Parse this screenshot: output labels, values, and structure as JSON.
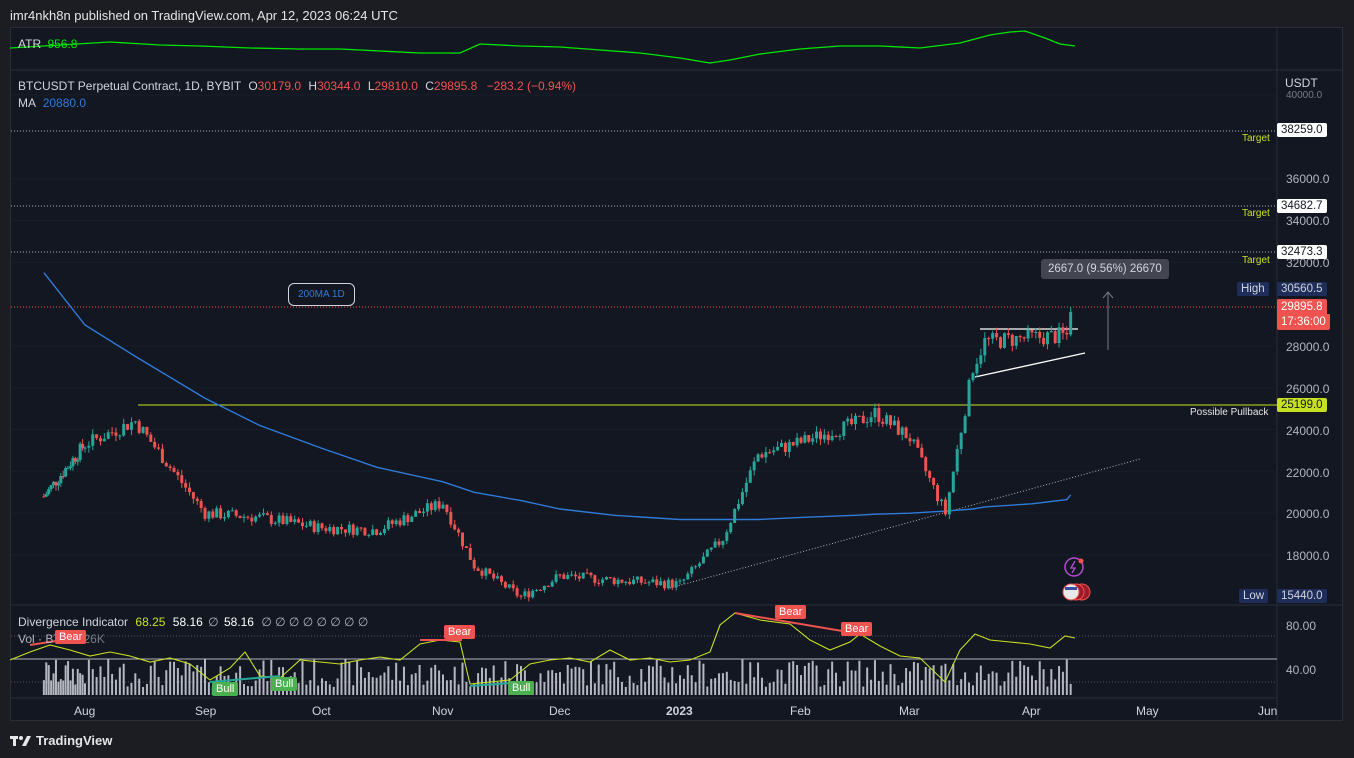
{
  "header": {
    "title": "imr4nkh8n published on TradingView.com, Apr 12, 2023 06:24 UTC"
  },
  "atr": {
    "label": "ATR",
    "value": "956.8"
  },
  "symbol": {
    "name": "BTCUSDT Perpetual Contract, 1D, BYBIT",
    "o_label": "O",
    "o": "30179.0",
    "h_label": "H",
    "h": "30344.0",
    "l_label": "L",
    "l": "29810.0",
    "c_label": "C",
    "c": "29895.8",
    "change": "−283.2 (−0.94%)"
  },
  "ma": {
    "label": "MA",
    "value": "20880.0"
  },
  "currency": "USDT",
  "price_axis": [
    "40000.0",
    "36000.0",
    "34000.0",
    "32000.0",
    "28000.0",
    "26000.0",
    "24000.0",
    "22000.0",
    "20000.0",
    "18000.0"
  ],
  "price_boxes": {
    "target1": "38259.0",
    "target2": "34682.7",
    "target3": "32473.3",
    "high_label": "High",
    "high": "30560.5",
    "last": "29895.8",
    "countdown": "17:36:00",
    "pullback": "25199.0",
    "low_label": "Low",
    "low": "15440.0"
  },
  "annotations": {
    "target": "Target",
    "possible_pullback": "Possible Pullback",
    "ma_callout": "200MA 1D",
    "measure": "2667.0 (9.56%) 26670"
  },
  "divergence": {
    "label": "Divergence Indicator",
    "v1": "68.25",
    "v2": "58.16",
    "v3": "58.16",
    "nulls": "∅ ∅ ∅ ∅ ∅ ∅ ∅ ∅",
    "axis": [
      "80.00",
      "40.00"
    ],
    "bear": "Bear",
    "bull": "Bull"
  },
  "volume": {
    "label": "Vol · BT",
    "value": "3.126K"
  },
  "time_axis": [
    "Aug",
    "Sep",
    "Oct",
    "Nov",
    "Dec",
    "2023",
    "Feb",
    "Mar",
    "Apr",
    "May",
    "Jun"
  ],
  "footer": {
    "brand": "TradingView"
  },
  "colors": {
    "bull": "#26a69a",
    "bear": "#ef5350",
    "ma": "#2962ff",
    "atr": "#00e600",
    "osc": "#c8e022",
    "pullback": "#c8e022"
  },
  "chart_data": {
    "type": "candlestick",
    "title": "BTCUSDT Perpetual Contract, 1D, BYBIT",
    "ylabel": "USDT",
    "ylim": [
      15440,
      40000
    ],
    "x": [
      "2022-07-15",
      "2022-08-01",
      "2022-08-14",
      "2022-09-01",
      "2022-09-15",
      "2022-10-01",
      "2022-10-15",
      "2022-11-01",
      "2022-11-09",
      "2022-11-21",
      "2022-12-01",
      "2022-12-15",
      "2023-01-01",
      "2023-01-12",
      "2023-01-21",
      "2023-02-01",
      "2023-02-15",
      "2023-02-20",
      "2023-03-01",
      "2023-03-10",
      "2023-03-17",
      "2023-03-20",
      "2023-04-01",
      "2023-04-10",
      "2023-04-11"
    ],
    "close": [
      20800,
      23300,
      24400,
      20000,
      19800,
      19300,
      19200,
      20500,
      17500,
      16000,
      17000,
      16800,
      16600,
      18800,
      22800,
      23400,
      24300,
      24800,
      23600,
      20000,
      27000,
      28200,
      28400,
      28500,
      29896
    ],
    "ma200": [
      31500,
      29000,
      27500,
      25500,
      24200,
      23100,
      22200,
      21500,
      21000,
      20600,
      20200,
      19900,
      19700,
      19700,
      19700,
      19800,
      19900,
      19950,
      20000,
      20100,
      20200,
      20300,
      20450,
      20650,
      20880
    ],
    "levels": {
      "target": [
        38259.0,
        34682.7,
        32473.3
      ],
      "high": 30560.5,
      "low": 15440.0,
      "pullback": 25199.0
    },
    "measure": {
      "from": 27893,
      "to": 30560,
      "change": 2667.0,
      "percent": 9.56
    }
  }
}
